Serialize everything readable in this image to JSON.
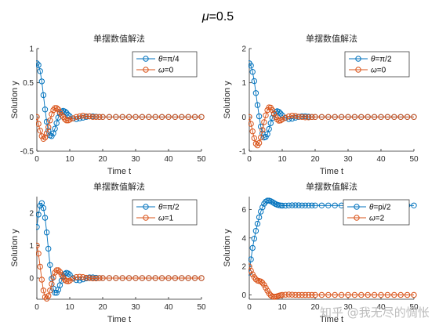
{
  "figure": {
    "suptitle_mu": "μ",
    "suptitle_value": "=0.5",
    "watermark": "知乎 @我无尽的惆怅"
  },
  "colors": {
    "theta": "#0072BD",
    "omega": "#D95319",
    "axis": "#262626"
  },
  "chart_data": [
    {
      "type": "scatter",
      "title": "单摆数值解法",
      "xlabel": "Time t",
      "ylabel": "Solution y",
      "xlim": [
        0,
        50
      ],
      "ylim": [
        -0.5,
        1
      ],
      "xticks": [
        0,
        10,
        20,
        30,
        40,
        50
      ],
      "yticks": [
        -0.5,
        0,
        0.5,
        1
      ],
      "legend_position": "top-right",
      "series": [
        {
          "name": "θ=π/4",
          "label_symbol": "θ",
          "label_rest": "=π/4",
          "color": "#0072BD",
          "x": [
            0,
            0.5,
            1,
            1.5,
            2,
            2.5,
            3,
            3.5,
            4,
            4.5,
            5,
            5.5,
            6,
            6.5,
            7,
            7.5,
            8,
            8.5,
            9,
            9.5,
            10,
            11,
            12,
            13,
            14,
            15,
            16,
            17,
            18,
            19,
            20,
            22,
            24,
            26,
            28,
            30,
            32,
            34,
            36,
            38,
            40,
            42,
            44,
            46,
            48,
            50
          ],
          "y": [
            0.785,
            0.76,
            0.67,
            0.52,
            0.32,
            0.11,
            -0.07,
            -0.2,
            -0.27,
            -0.28,
            -0.24,
            -0.17,
            -0.09,
            -0.01,
            0.05,
            0.08,
            0.09,
            0.08,
            0.06,
            0.03,
            0.01,
            -0.02,
            -0.03,
            -0.02,
            -0.01,
            0,
            0.01,
            0.01,
            0.005,
            0,
            0,
            0,
            0,
            0,
            0,
            0,
            0,
            0,
            0,
            0,
            0,
            0,
            0,
            0,
            0,
            0
          ]
        },
        {
          "name": "ω=0",
          "label_symbol": "ω",
          "label_rest": "=0",
          "color": "#D95319",
          "x": [
            0,
            0.5,
            1,
            1.5,
            2,
            2.5,
            3,
            3.5,
            4,
            4.5,
            5,
            5.5,
            6,
            6.5,
            7,
            7.5,
            8,
            8.5,
            9,
            9.5,
            10,
            11,
            12,
            13,
            14,
            15,
            16,
            17,
            18,
            19,
            20,
            22,
            24,
            26,
            28,
            30,
            32,
            34,
            36,
            38,
            40,
            42,
            44,
            46,
            48,
            50
          ],
          "y": [
            0,
            -0.1,
            -0.2,
            -0.28,
            -0.32,
            -0.3,
            -0.24,
            -0.15,
            -0.05,
            0.04,
            0.1,
            0.13,
            0.13,
            0.11,
            0.07,
            0.03,
            0,
            -0.03,
            -0.05,
            -0.05,
            -0.04,
            -0.02,
            0,
            0.01,
            0.02,
            0.01,
            0.01,
            0,
            0,
            0,
            0,
            0,
            0,
            0,
            0,
            0,
            0,
            0,
            0,
            0,
            0,
            0,
            0,
            0,
            0,
            0
          ]
        }
      ]
    },
    {
      "type": "scatter",
      "title": "单摆数值解法",
      "xlabel": "Time t",
      "ylabel": "Solution y",
      "xlim": [
        0,
        50
      ],
      "ylim": [
        -1,
        2
      ],
      "xticks": [
        0,
        10,
        20,
        30,
        40,
        50
      ],
      "yticks": [
        -1,
        0,
        1,
        2
      ],
      "legend_position": "top-right",
      "series": [
        {
          "name": "θ=π/2",
          "label_symbol": "θ",
          "label_rest": "=π/2",
          "color": "#0072BD",
          "x": [
            0,
            0.5,
            1,
            1.5,
            2,
            2.5,
            3,
            3.5,
            4,
            4.5,
            5,
            5.5,
            6,
            6.5,
            7,
            7.5,
            8,
            8.5,
            9,
            9.5,
            10,
            11,
            12,
            13,
            14,
            15,
            16,
            17,
            18,
            19,
            20,
            22,
            24,
            26,
            28,
            30,
            32,
            34,
            36,
            38,
            40,
            42,
            44,
            46,
            48,
            50
          ],
          "y": [
            1.57,
            1.5,
            1.32,
            1.05,
            0.7,
            0.35,
            0.02,
            -0.28,
            -0.48,
            -0.6,
            -0.58,
            -0.5,
            -0.35,
            -0.18,
            -0.03,
            0.08,
            0.15,
            0.17,
            0.15,
            0.1,
            0.05,
            -0.03,
            -0.06,
            -0.05,
            -0.02,
            0,
            0.02,
            0.02,
            0.01,
            0,
            0,
            0,
            0,
            0,
            0,
            0,
            0,
            0,
            0,
            0,
            0,
            0,
            0,
            0,
            0,
            0
          ]
        },
        {
          "name": "ω=0",
          "label_symbol": "ω",
          "label_rest": "=0",
          "color": "#D95319",
          "x": [
            0,
            0.5,
            1,
            1.5,
            2,
            2.5,
            3,
            3.5,
            4,
            4.5,
            5,
            5.5,
            6,
            6.5,
            7,
            7.5,
            8,
            8.5,
            9,
            9.5,
            10,
            11,
            12,
            13,
            14,
            15,
            16,
            17,
            18,
            19,
            20,
            22,
            24,
            26,
            28,
            30,
            32,
            34,
            36,
            38,
            40,
            42,
            44,
            46,
            48,
            50
          ],
          "y": [
            0,
            -0.2,
            -0.42,
            -0.62,
            -0.78,
            -0.83,
            -0.76,
            -0.6,
            -0.38,
            -0.15,
            0.05,
            0.2,
            0.28,
            0.27,
            0.2,
            0.1,
            0,
            -0.07,
            -0.11,
            -0.1,
            -0.07,
            -0.02,
            0.02,
            0.04,
            0.03,
            0.01,
            0,
            -0.01,
            -0.01,
            0,
            0,
            0,
            0,
            0,
            0,
            0,
            0,
            0,
            0,
            0,
            0,
            0,
            0,
            0,
            0,
            0
          ]
        }
      ]
    },
    {
      "type": "scatter",
      "title": "单摆数值解法",
      "xlabel": "Time t",
      "ylabel": "Solution y",
      "xlim": [
        0,
        50
      ],
      "ylim": [
        -0.65,
        2.5
      ],
      "xticks": [
        0,
        10,
        20,
        30,
        40,
        50
      ],
      "yticks": [
        0,
        1,
        2
      ],
      "legend_position": "top-right",
      "series": [
        {
          "name": "θ=π/2",
          "label_symbol": "θ",
          "label_rest": "=π/2",
          "color": "#0072BD",
          "x": [
            0,
            0.5,
            1,
            1.5,
            2,
            2.5,
            3,
            3.5,
            4,
            4.5,
            5,
            5.5,
            6,
            6.5,
            7,
            7.5,
            8,
            8.5,
            9,
            9.5,
            10,
            11,
            12,
            13,
            14,
            15,
            16,
            17,
            18,
            19,
            20,
            22,
            24,
            26,
            28,
            30,
            32,
            34,
            36,
            38,
            40,
            42,
            44,
            46,
            48,
            50
          ],
          "y": [
            1.57,
            1.95,
            2.22,
            2.3,
            2.15,
            1.85,
            1.4,
            0.9,
            0.4,
            -0.02,
            -0.32,
            -0.45,
            -0.45,
            -0.36,
            -0.22,
            -0.08,
            0.05,
            0.13,
            0.16,
            0.14,
            0.1,
            0,
            -0.06,
            -0.07,
            -0.04,
            -0.01,
            0.02,
            0.02,
            0.01,
            0,
            0,
            0,
            0,
            0,
            0,
            0,
            0,
            0,
            0,
            0,
            0,
            0,
            0,
            0,
            0,
            0
          ]
        },
        {
          "name": "ω=1",
          "label_symbol": "ω",
          "label_rest": "=1",
          "color": "#D95319",
          "x": [
            0,
            0.5,
            1,
            1.5,
            2,
            2.5,
            3,
            3.5,
            4,
            4.5,
            5,
            5.5,
            6,
            6.5,
            7,
            7.5,
            8,
            8.5,
            9,
            9.5,
            10,
            11,
            12,
            13,
            14,
            15,
            16,
            17,
            18,
            19,
            20,
            22,
            24,
            26,
            28,
            30,
            32,
            34,
            36,
            38,
            40,
            42,
            44,
            46,
            48,
            50
          ],
          "y": [
            1,
            0.75,
            0.35,
            -0.05,
            -0.38,
            -0.58,
            -0.63,
            -0.55,
            -0.38,
            -0.18,
            0.02,
            0.17,
            0.24,
            0.24,
            0.19,
            0.1,
            0.02,
            -0.05,
            -0.09,
            -0.1,
            -0.08,
            -0.02,
            0.03,
            0.04,
            0.03,
            0.01,
            0,
            -0.01,
            -0.01,
            0,
            0,
            0,
            0,
            0,
            0,
            0,
            0,
            0,
            0,
            0,
            0,
            0,
            0,
            0,
            0,
            0
          ]
        }
      ]
    },
    {
      "type": "scatter",
      "title": "单摆数值解法",
      "xlabel": "Time t",
      "ylabel": "Solution y",
      "xlim": [
        0,
        50
      ],
      "ylim": [
        -0.3,
        6.9
      ],
      "xticks": [
        0,
        10,
        20,
        30,
        40,
        50
      ],
      "yticks": [
        0,
        2,
        4,
        6
      ],
      "legend_position": "top-right",
      "series": [
        {
          "name": "θ=pi/2",
          "label_symbol": "θ",
          "label_rest": "=pi/2",
          "color": "#0072BD",
          "x": [
            0,
            0.5,
            1,
            1.5,
            2,
            2.5,
            3,
            3.5,
            4,
            4.5,
            5,
            5.5,
            6,
            6.5,
            7,
            7.5,
            8,
            8.5,
            9,
            9.5,
            10,
            11,
            12,
            13,
            14,
            15,
            16,
            17,
            18,
            19,
            20,
            22,
            24,
            26,
            28,
            30,
            32,
            34,
            36,
            38,
            40,
            42,
            44,
            46,
            48,
            50
          ],
          "y": [
            1.57,
            2.5,
            3.3,
            3.95,
            4.5,
            5,
            5.45,
            5.85,
            6.15,
            6.4,
            6.55,
            6.62,
            6.62,
            6.58,
            6.52,
            6.45,
            6.38,
            6.33,
            6.3,
            6.28,
            6.27,
            6.27,
            6.28,
            6.29,
            6.29,
            6.29,
            6.28,
            6.28,
            6.28,
            6.28,
            6.28,
            6.28,
            6.28,
            6.28,
            6.28,
            6.28,
            6.28,
            6.28,
            6.28,
            6.28,
            6.28,
            6.28,
            6.28,
            6.28,
            6.28,
            6.28
          ]
        },
        {
          "name": "ω=2",
          "label_symbol": "ω",
          "label_rest": "=2",
          "color": "#D95319",
          "x": [
            0,
            0.5,
            1,
            1.5,
            2,
            2.5,
            3,
            3.5,
            4,
            4.5,
            5,
            5.5,
            6,
            6.5,
            7,
            7.5,
            8,
            8.5,
            9,
            9.5,
            10,
            11,
            12,
            13,
            14,
            15,
            16,
            17,
            18,
            19,
            20,
            22,
            24,
            26,
            28,
            30,
            32,
            34,
            36,
            38,
            40,
            42,
            44,
            46,
            48,
            50
          ],
          "y": [
            2,
            1.7,
            1.45,
            1.25,
            1.1,
            1,
            0.98,
            0.95,
            0.85,
            0.7,
            0.5,
            0.3,
            0.12,
            -0.02,
            -0.1,
            -0.13,
            -0.12,
            -0.09,
            -0.05,
            -0.02,
            0,
            0.02,
            0.03,
            0.02,
            0.01,
            0,
            0,
            0,
            0,
            0,
            0,
            0,
            0,
            0,
            0,
            0,
            0,
            0,
            0,
            0,
            0,
            0,
            0,
            0,
            0,
            0
          ]
        }
      ]
    }
  ]
}
